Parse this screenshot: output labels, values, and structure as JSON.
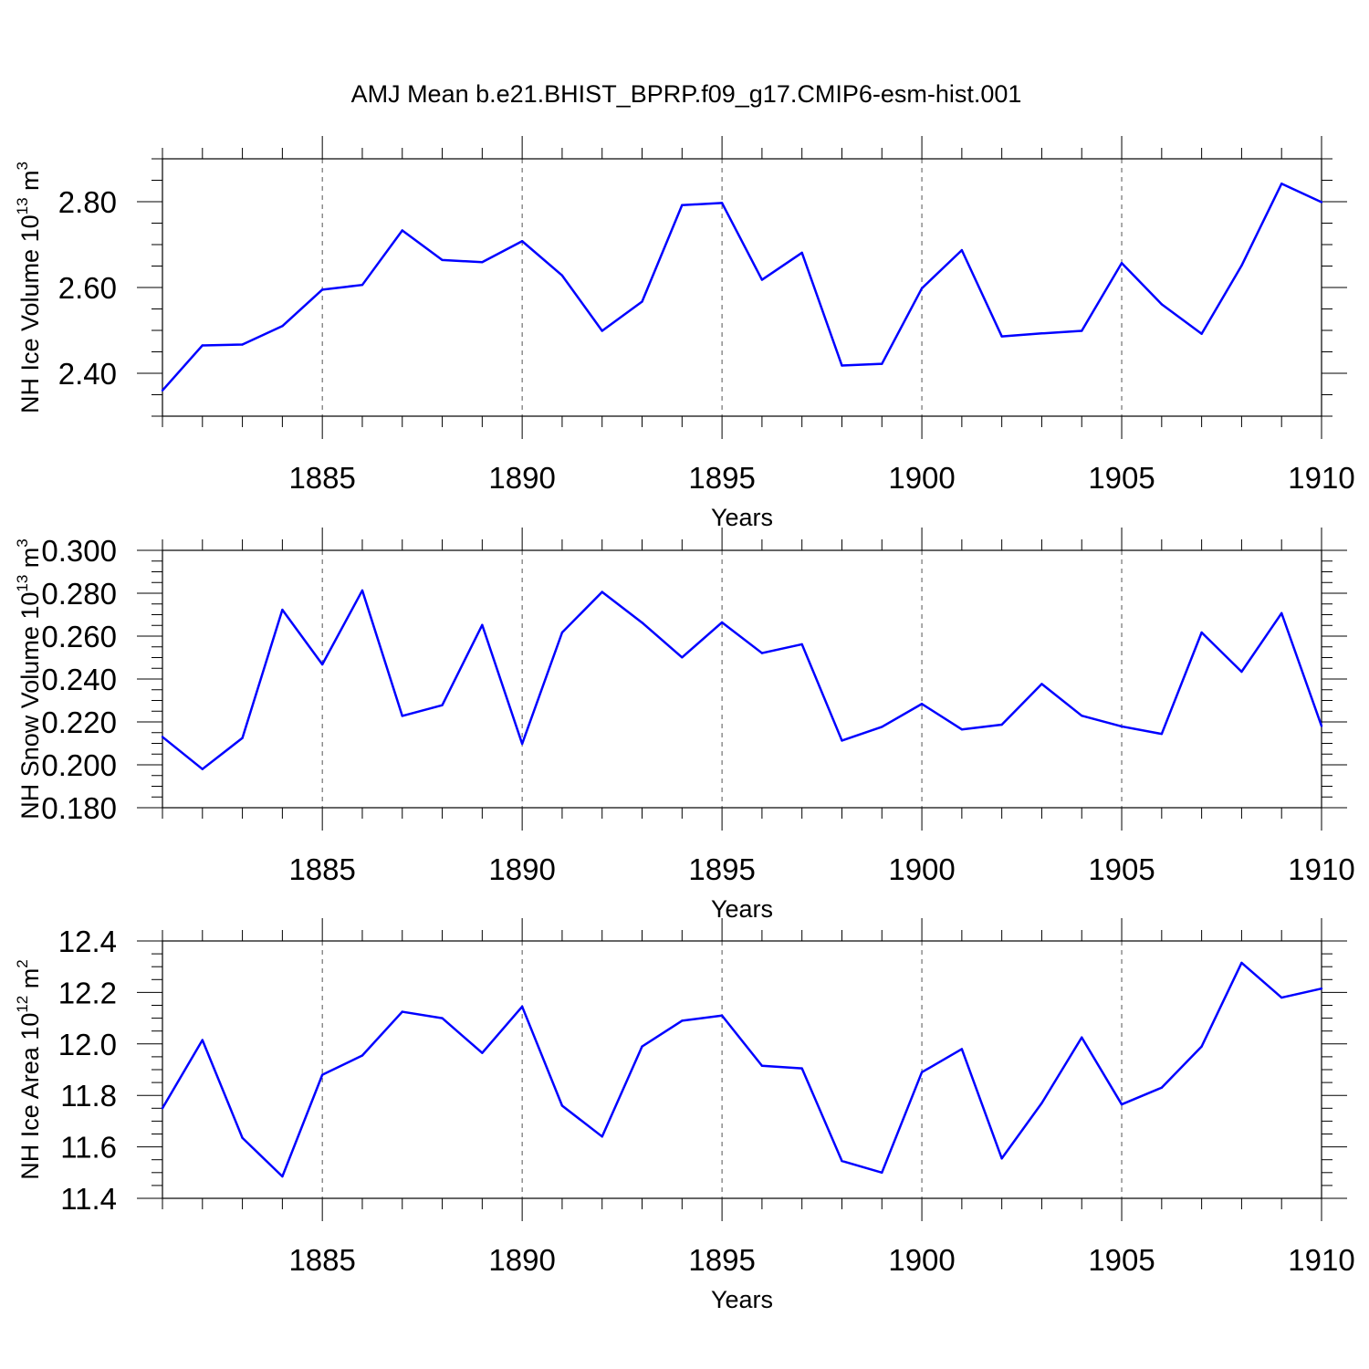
{
  "title": "AMJ Mean b.e21.BHIST_BPRP.f09_g17.CMIP6-esm-hist.001",
  "colors": {
    "line": "#0000ff",
    "axis": "#000000",
    "grid": "#555555"
  },
  "chart_data": [
    {
      "type": "line",
      "xlabel": "Years",
      "ylabel": {
        "main": "NH Ice Volume 10",
        "sup": "13",
        "unit": " m",
        "unit_sup": "3"
      },
      "xlim": [
        1881,
        1910
      ],
      "ylim": [
        2.3,
        2.9
      ],
      "xticks": [
        1885,
        1890,
        1895,
        1900,
        1905,
        1910
      ],
      "yticks": [
        2.4,
        2.6,
        2.8
      ],
      "ytick_labels": [
        "2.40",
        "2.60",
        "2.80"
      ],
      "grid": "vertical dashed at major x ticks",
      "x": [
        1881,
        1882,
        1883,
        1884,
        1885,
        1886,
        1887,
        1888,
        1889,
        1890,
        1891,
        1892,
        1893,
        1894,
        1895,
        1896,
        1897,
        1898,
        1899,
        1900,
        1901,
        1902,
        1903,
        1904,
        1905,
        1906,
        1907,
        1908,
        1909,
        1910
      ],
      "values": [
        2.36,
        2.465,
        2.467,
        2.51,
        2.595,
        2.606,
        2.733,
        2.664,
        2.659,
        2.708,
        2.628,
        2.499,
        2.567,
        2.792,
        2.797,
        2.618,
        2.681,
        2.418,
        2.422,
        2.598,
        2.687,
        2.486,
        2.493,
        2.499,
        2.657,
        2.561,
        2.492,
        2.651,
        2.842,
        2.799
      ]
    },
    {
      "type": "line",
      "xlabel": "Years",
      "ylabel": {
        "main": "NH Snow Volume 10",
        "sup": "13",
        "unit": " m",
        "unit_sup": "3"
      },
      "xlim": [
        1881,
        1910
      ],
      "ylim": [
        0.18,
        0.3
      ],
      "xticks": [
        1885,
        1890,
        1895,
        1900,
        1905,
        1910
      ],
      "yticks": [
        0.18,
        0.2,
        0.22,
        0.24,
        0.26,
        0.28,
        0.3
      ],
      "ytick_labels": [
        "0.180",
        "0.200",
        "0.220",
        "0.240",
        "0.260",
        "0.280",
        "0.300"
      ],
      "grid": "vertical dashed at major x ticks",
      "x": [
        1881,
        1882,
        1883,
        1884,
        1885,
        1886,
        1887,
        1888,
        1889,
        1890,
        1891,
        1892,
        1893,
        1894,
        1895,
        1896,
        1897,
        1898,
        1899,
        1900,
        1901,
        1902,
        1903,
        1904,
        1905,
        1906,
        1907,
        1908,
        1909,
        1910
      ],
      "values": [
        0.213,
        0.198,
        0.2125,
        0.2723,
        0.2468,
        0.2813,
        0.2228,
        0.2278,
        0.2652,
        0.2098,
        0.2617,
        0.2806,
        0.2663,
        0.2501,
        0.2664,
        0.2521,
        0.2562,
        0.2113,
        0.2177,
        0.2284,
        0.2165,
        0.2187,
        0.2377,
        0.2229,
        0.2179,
        0.2144,
        0.2617,
        0.2434,
        0.2707,
        0.2181
      ]
    },
    {
      "type": "line",
      "xlabel": "Years",
      "ylabel": {
        "main": "NH Ice Area 10",
        "sup": "12",
        "unit": " m",
        "unit_sup": "2"
      },
      "xlim": [
        1881,
        1910
      ],
      "ylim": [
        11.4,
        12.4
      ],
      "xticks": [
        1885,
        1890,
        1895,
        1900,
        1905,
        1910
      ],
      "yticks": [
        11.4,
        11.6,
        11.8,
        12.0,
        12.2,
        12.4
      ],
      "ytick_labels": [
        "11.4",
        "11.6",
        "11.8",
        "12.0",
        "12.2",
        "12.4"
      ],
      "grid": "vertical dashed at major x ticks",
      "x": [
        1881,
        1882,
        1883,
        1884,
        1885,
        1886,
        1887,
        1888,
        1889,
        1890,
        1891,
        1892,
        1893,
        1894,
        1895,
        1896,
        1897,
        1898,
        1899,
        1900,
        1901,
        1902,
        1903,
        1904,
        1905,
        1906,
        1907,
        1908,
        1909,
        1910
      ],
      "values": [
        11.75,
        12.015,
        11.635,
        11.485,
        11.88,
        11.955,
        12.125,
        12.1,
        11.965,
        12.145,
        11.76,
        11.64,
        11.99,
        12.09,
        12.11,
        11.915,
        11.905,
        11.545,
        11.5,
        11.89,
        11.98,
        11.555,
        11.77,
        12.025,
        11.765,
        11.83,
        11.99,
        12.315,
        12.18,
        12.215
      ]
    }
  ]
}
